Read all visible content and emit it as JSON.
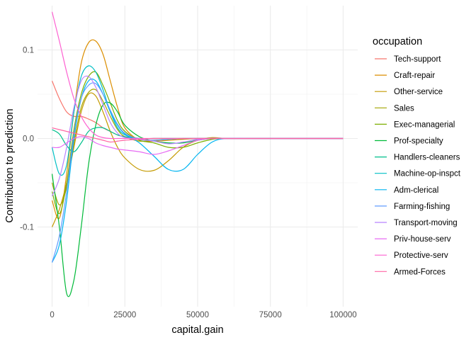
{
  "chart_data": {
    "type": "line",
    "xlabel": "capital.gain",
    "ylabel": "Contribution to prediction",
    "xlim": [
      -5000,
      105000
    ],
    "ylim": [
      -0.19,
      0.15
    ],
    "x_ticks": [
      0,
      25000,
      50000,
      75000,
      100000
    ],
    "x_tick_labels": [
      "0",
      "25000",
      "50000",
      "75000",
      "100000"
    ],
    "y_ticks": [
      -0.1,
      0.0,
      0.1
    ],
    "y_tick_labels": [
      "-0.1",
      "0.0",
      "0.1"
    ],
    "grid": true,
    "legend": {
      "title": "occupation",
      "position": "right"
    },
    "x": [
      0,
      2500,
      5000,
      7500,
      10000,
      12500,
      15000,
      17500,
      20000,
      22500,
      25000,
      30000,
      35000,
      40000,
      45000,
      50000,
      55000,
      60000,
      70000,
      80000,
      100000
    ],
    "series": [
      {
        "name": "Tech-support",
        "color": "#F8766D",
        "values": [
          0.065,
          0.045,
          0.03,
          0.025,
          0.025,
          0.022,
          0.018,
          0.012,
          0.008,
          0.004,
          0.002,
          0.0,
          0.0,
          0.0,
          0.0,
          0.0,
          0.0,
          0.0,
          0.0,
          0.0,
          0.0
        ]
      },
      {
        "name": "Craft-repair",
        "color": "#DB8E00",
        "values": [
          -0.07,
          -0.09,
          -0.04,
          0.03,
          0.085,
          0.108,
          0.11,
          0.095,
          0.065,
          0.035,
          0.012,
          -0.002,
          -0.003,
          -0.002,
          -0.001,
          0.0,
          0.0,
          0.0,
          0.0,
          0.0,
          0.0
        ]
      },
      {
        "name": "Other-service",
        "color": "#C49A00",
        "values": [
          -0.1,
          -0.08,
          -0.05,
          -0.01,
          0.03,
          0.05,
          0.048,
          0.03,
          0.008,
          -0.01,
          -0.022,
          -0.035,
          -0.036,
          -0.025,
          -0.01,
          -0.002,
          0.001,
          0.0,
          0.0,
          0.0,
          0.0
        ]
      },
      {
        "name": "Sales",
        "color": "#A3A500",
        "values": [
          -0.05,
          -0.075,
          -0.055,
          -0.005,
          0.035,
          0.052,
          0.055,
          0.042,
          0.025,
          0.01,
          0.002,
          -0.003,
          -0.002,
          -0.001,
          0.0,
          0.0,
          0.0,
          0.0,
          0.0,
          0.0,
          0.0
        ]
      },
      {
        "name": "Exec-managerial",
        "color": "#7CAE00",
        "values": [
          -0.06,
          -0.085,
          -0.05,
          0.01,
          0.05,
          0.07,
          0.075,
          0.06,
          0.04,
          0.02,
          0.008,
          -0.002,
          -0.005,
          -0.01,
          -0.01,
          -0.005,
          -0.001,
          0.0,
          0.0,
          0.0,
          0.0
        ]
      },
      {
        "name": "Prof-specialty",
        "color": "#00BA38",
        "values": [
          -0.04,
          -0.1,
          -0.175,
          -0.16,
          -0.1,
          -0.03,
          0.015,
          0.038,
          0.04,
          0.03,
          0.015,
          0.002,
          -0.003,
          -0.005,
          -0.005,
          -0.002,
          0.0,
          0.0,
          0.0,
          0.0,
          0.0
        ]
      },
      {
        "name": "Handlers-cleaners",
        "color": "#00C08B",
        "values": [
          0.01,
          0.005,
          -0.008,
          -0.015,
          -0.005,
          0.008,
          0.012,
          0.012,
          0.008,
          0.004,
          0.002,
          0.0,
          0.0,
          0.0,
          0.0,
          0.0,
          0.0,
          0.0,
          0.0,
          0.0,
          0.0
        ]
      },
      {
        "name": "Machine-op-inspct",
        "color": "#00BFC4",
        "values": [
          -0.01,
          -0.04,
          -0.03,
          0.03,
          0.07,
          0.082,
          0.075,
          0.055,
          0.03,
          0.012,
          0.004,
          0.0,
          0.0,
          0.0,
          0.0,
          0.0,
          0.0,
          0.0,
          0.0,
          0.0,
          0.0
        ]
      },
      {
        "name": "Adm-clerical",
        "color": "#00B4F0",
        "values": [
          -0.14,
          -0.12,
          -0.07,
          0.0,
          0.045,
          0.065,
          0.065,
          0.05,
          0.03,
          0.015,
          0.005,
          -0.005,
          -0.02,
          -0.035,
          -0.035,
          -0.018,
          -0.004,
          0.0,
          0.0,
          0.0,
          0.0
        ]
      },
      {
        "name": "Farming-fishing",
        "color": "#619CFF",
        "values": [
          -0.14,
          -0.11,
          -0.06,
          0.005,
          0.045,
          0.06,
          0.062,
          0.05,
          0.032,
          0.016,
          0.006,
          -0.001,
          -0.002,
          -0.001,
          0.0,
          0.0,
          0.0,
          0.0,
          0.0,
          0.0,
          0.0
        ]
      },
      {
        "name": "Transport-moving",
        "color": "#B983FF",
        "values": [
          -0.065,
          -0.045,
          -0.01,
          0.035,
          0.065,
          0.07,
          0.058,
          0.038,
          0.018,
          0.006,
          0.001,
          -0.001,
          -0.003,
          -0.006,
          -0.004,
          -0.001,
          0.0,
          0.0,
          0.0,
          0.0,
          0.0
        ]
      },
      {
        "name": "Priv-house-serv",
        "color": "#E76BF3",
        "values": [
          -0.01,
          -0.01,
          -0.005,
          0.0,
          0.002,
          0.0,
          -0.005,
          -0.008,
          -0.01,
          -0.012,
          -0.013,
          -0.015,
          -0.018,
          -0.014,
          -0.008,
          -0.002,
          0.0,
          0.0,
          0.0,
          0.0,
          0.0
        ]
      },
      {
        "name": "Protective-serv",
        "color": "#FD61D1",
        "values": [
          0.143,
          0.11,
          0.075,
          0.045,
          0.025,
          0.012,
          0.004,
          0.001,
          0.0,
          0.0,
          0.0,
          0.0,
          0.0,
          0.0,
          0.0,
          0.0,
          0.0,
          0.0,
          0.0,
          0.0,
          0.0
        ]
      },
      {
        "name": "Armed-Forces",
        "color": "#FF67A4",
        "values": [
          0.012,
          0.01,
          0.008,
          0.006,
          0.004,
          0.002,
          0.0,
          -0.002,
          -0.004,
          -0.003,
          -0.002,
          -0.001,
          0.0,
          0.0,
          0.0,
          0.0,
          0.0,
          0.0,
          0.0,
          0.0,
          0.0
        ]
      }
    ]
  }
}
